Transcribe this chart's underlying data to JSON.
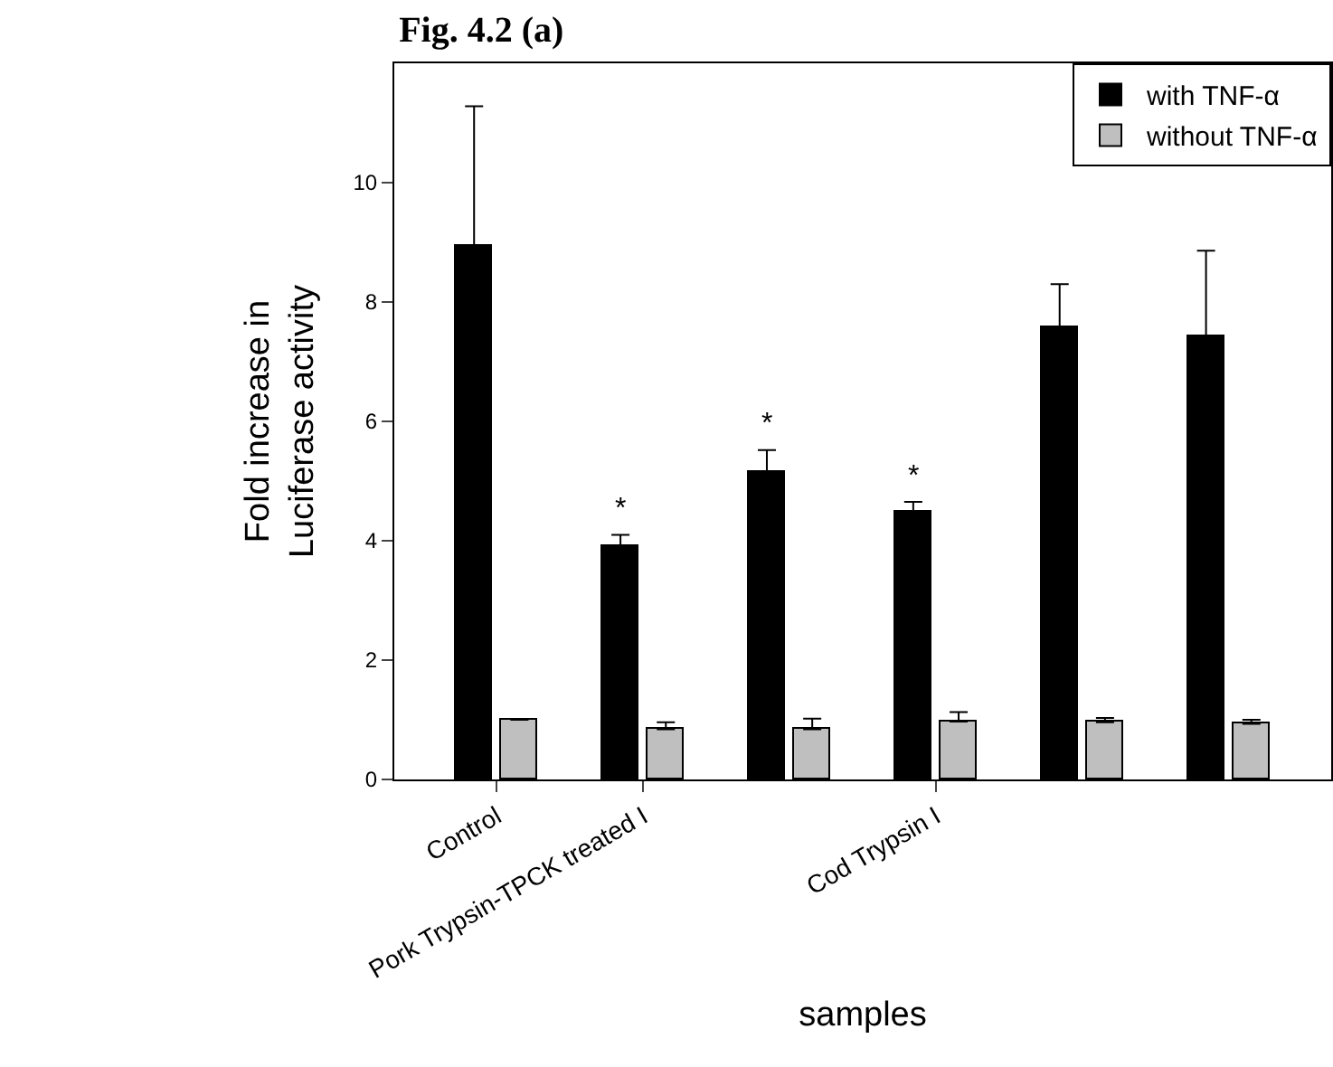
{
  "chart_data": {
    "type": "bar",
    "title": "Fig. 4.2 (a)",
    "xlabel": "samples",
    "ylabel": "Fold increase in\nLuciferase activity",
    "categories": [
      "Control",
      "Pork Trypsin-TPCK treated I",
      null,
      "Cod Trypsin I",
      null,
      null
    ],
    "series": [
      {
        "name": "with TNF-α",
        "color": "#000000",
        "values": [
          8.95,
          3.9,
          5.16,
          4.47,
          7.57,
          7.43
        ],
        "errors": [
          [
            8.95,
            11.28
          ],
          [
            3.9,
            4.1
          ],
          [
            5.16,
            5.52
          ],
          [
            4.47,
            4.65
          ],
          [
            7.57,
            8.3
          ],
          [
            7.43,
            8.86
          ]
        ],
        "value_labels": [
          null,
          "*",
          "*",
          "*",
          null,
          null
        ]
      },
      {
        "name": "without TNF-α",
        "color": "#bfbfbf",
        "values": [
          1.0,
          0.84,
          0.84,
          0.97,
          0.96,
          0.93
        ],
        "errors": [
          null,
          [
            0.84,
            0.96
          ],
          [
            0.84,
            1.02
          ],
          [
            0.97,
            1.13
          ],
          [
            0.96,
            1.03
          ],
          [
            0.93,
            1.0
          ]
        ]
      }
    ],
    "ylim": [
      0,
      12
    ],
    "yticks": [
      0,
      2,
      4,
      6,
      8,
      10
    ],
    "grid": false,
    "legend": "top right"
  }
}
